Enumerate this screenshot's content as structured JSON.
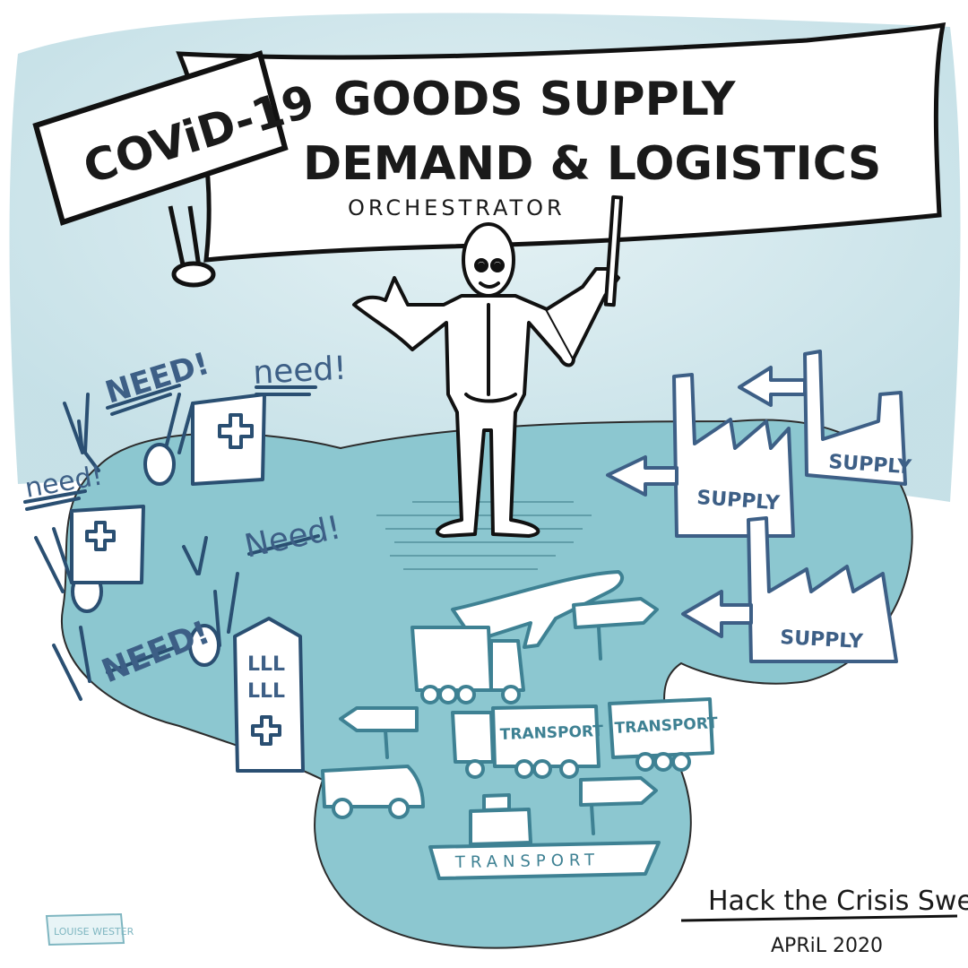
{
  "banner": {
    "sign_text": "COViD-19",
    "title_line1": "GOODS SUPPLY",
    "title_line2": "DEMAND & LOGISTICS",
    "subtitle": "ORCHESTRATOR"
  },
  "needs": {
    "need1": "NEED!",
    "need2": "need!",
    "need3": "need!",
    "need4": "Need!",
    "need5": "NEED!"
  },
  "supply": {
    "factory1": "SUPPLY",
    "factory2": "SUPPLY",
    "factory3": "SUPPLY"
  },
  "transport": {
    "truck1": "TRANSPORT",
    "truck2": "TRANSPORT",
    "ship": "TRANSPORT"
  },
  "hospital_windows": {
    "row1": "LLL",
    "row2": "LLL"
  },
  "footer": {
    "event": "Hack the Crisis Sweden",
    "date": "APRiL 2020",
    "artist": "LOUISE WESTER"
  },
  "colors": {
    "sky": "#cfe6ec",
    "land": "#8cc7d0",
    "land_dark": "#6fb4c0",
    "ink": "#1a1a1a",
    "supply_ink": "#3d5f86",
    "transport_ink": "#3e8193"
  }
}
